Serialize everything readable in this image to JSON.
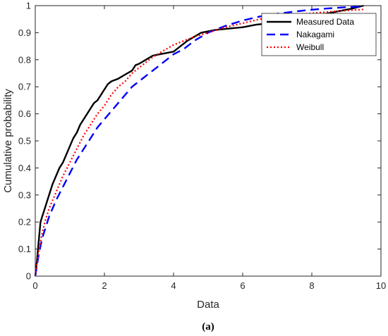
{
  "chart_data": {
    "type": "line",
    "title": "",
    "xlabel": "Data",
    "ylabel": "Cumulative probability",
    "caption": "(a)",
    "xlim": [
      0,
      10
    ],
    "ylim": [
      0,
      1
    ],
    "xticks": [
      "0",
      "2",
      "4",
      "6",
      "8",
      "10"
    ],
    "xtick_values": [
      0,
      2,
      4,
      6,
      8,
      10
    ],
    "yticks": [
      "0",
      "0.1",
      "0.2",
      "0.3",
      "0.4",
      "0.5",
      "0.6",
      "0.7",
      "0.8",
      "0.9",
      "1"
    ],
    "ytick_values": [
      0,
      0.1,
      0.2,
      0.3,
      0.4,
      0.5,
      0.6,
      0.7,
      0.8,
      0.9,
      1
    ],
    "grid": false,
    "legend_position": "top-right",
    "series": [
      {
        "name": "Measured Data",
        "color": "#000000",
        "style": "solid",
        "x": [
          0,
          0.05,
          0.1,
          0.15,
          0.2,
          0.25,
          0.3,
          0.4,
          0.5,
          0.6,
          0.7,
          0.8,
          0.9,
          1.0,
          1.1,
          1.2,
          1.3,
          1.4,
          1.5,
          1.6,
          1.7,
          1.8,
          1.9,
          2.0,
          2.1,
          2.2,
          2.4,
          2.6,
          2.8,
          2.9,
          3.0,
          3.2,
          3.4,
          3.6,
          3.8,
          4.0,
          4.2,
          4.4,
          4.6,
          4.8,
          5.2,
          5.6,
          6.0,
          6.4,
          6.8,
          7.2,
          7.6,
          8.0,
          8.4,
          8.8,
          9.2,
          9.5
        ],
        "y": [
          0,
          0.06,
          0.13,
          0.2,
          0.22,
          0.24,
          0.26,
          0.3,
          0.34,
          0.37,
          0.4,
          0.42,
          0.45,
          0.48,
          0.51,
          0.53,
          0.56,
          0.58,
          0.6,
          0.62,
          0.64,
          0.65,
          0.67,
          0.69,
          0.71,
          0.72,
          0.73,
          0.745,
          0.76,
          0.78,
          0.785,
          0.8,
          0.815,
          0.82,
          0.825,
          0.83,
          0.85,
          0.87,
          0.885,
          0.9,
          0.91,
          0.915,
          0.92,
          0.93,
          0.935,
          0.94,
          0.95,
          0.96,
          0.97,
          0.98,
          0.99,
          1.0
        ]
      },
      {
        "name": "Nakagami",
        "color": "#0000ff",
        "style": "dashed",
        "x": [
          0,
          0.1,
          0.2,
          0.3,
          0.4,
          0.5,
          0.6,
          0.8,
          1.0,
          1.2,
          1.4,
          1.6,
          1.8,
          2.0,
          2.2,
          2.4,
          2.6,
          2.8,
          3.0,
          3.2,
          3.4,
          3.6,
          3.8,
          4.0,
          4.3,
          4.6,
          5.0,
          5.5,
          6.0,
          6.5,
          7.0,
          7.5,
          8.0,
          8.5,
          9.0,
          9.5
        ],
        "y": [
          0,
          0.08,
          0.14,
          0.18,
          0.22,
          0.25,
          0.28,
          0.33,
          0.38,
          0.43,
          0.47,
          0.51,
          0.55,
          0.58,
          0.61,
          0.64,
          0.67,
          0.7,
          0.72,
          0.74,
          0.76,
          0.78,
          0.8,
          0.82,
          0.84,
          0.87,
          0.9,
          0.925,
          0.945,
          0.96,
          0.97,
          0.978,
          0.985,
          0.99,
          0.994,
          0.997
        ]
      },
      {
        "name": "Weibull",
        "color": "#ff0000",
        "style": "dotted",
        "x": [
          0,
          0.05,
          0.1,
          0.2,
          0.3,
          0.4,
          0.5,
          0.6,
          0.8,
          1.0,
          1.2,
          1.4,
          1.6,
          1.8,
          2.0,
          2.2,
          2.4,
          2.6,
          2.8,
          3.0,
          3.2,
          3.4,
          3.6,
          3.8,
          4.0,
          4.3,
          4.6,
          5.0,
          5.5,
          6.0,
          6.5,
          7.0,
          7.5,
          8.0,
          8.5,
          9.0,
          9.5
        ],
        "y": [
          0,
          0.05,
          0.09,
          0.16,
          0.21,
          0.25,
          0.28,
          0.31,
          0.37,
          0.42,
          0.47,
          0.52,
          0.56,
          0.6,
          0.63,
          0.67,
          0.7,
          0.72,
          0.75,
          0.77,
          0.79,
          0.81,
          0.825,
          0.84,
          0.855,
          0.87,
          0.885,
          0.9,
          0.92,
          0.935,
          0.95,
          0.96,
          0.967,
          0.972,
          0.977,
          0.982,
          0.986
        ]
      }
    ]
  }
}
